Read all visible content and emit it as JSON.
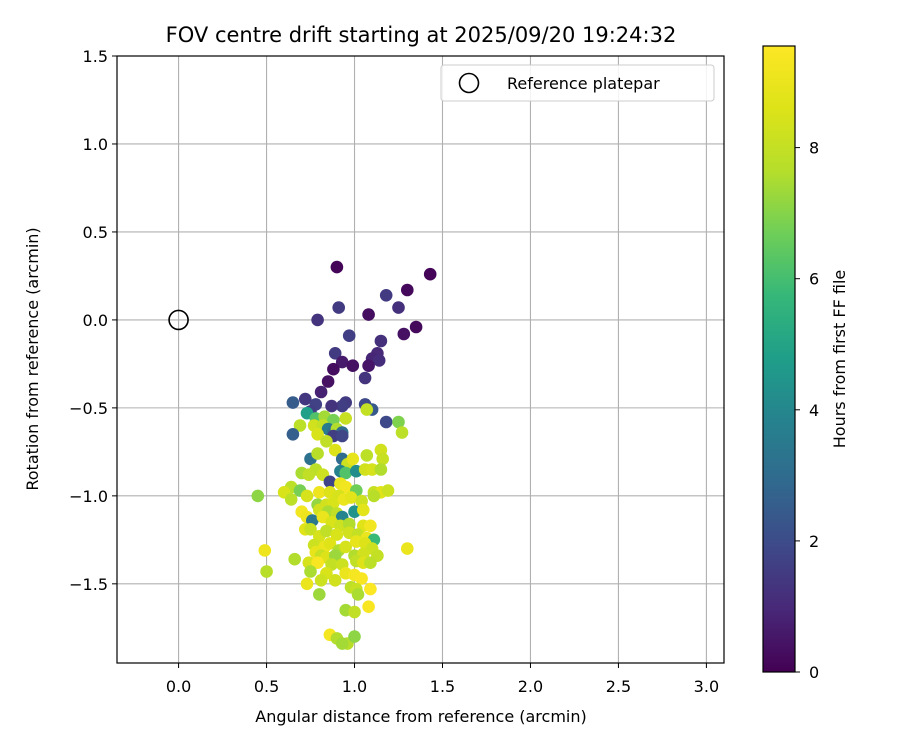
{
  "chart_data": {
    "type": "scatter",
    "title": "FOV centre drift starting at 2025/09/20 19:24:32",
    "xlabel": "Angular distance from reference (arcmin)",
    "ylabel": "Rotation from reference (arcmin)",
    "xlim": [
      -0.35,
      3.1
    ],
    "ylim": [
      -1.95,
      1.5
    ],
    "xticks": [
      0.0,
      0.5,
      1.0,
      1.5,
      2.0,
      2.5,
      3.0
    ],
    "xtick_labels": [
      "0.0",
      "0.5",
      "1.0",
      "1.5",
      "2.0",
      "2.5",
      "3.0"
    ],
    "yticks": [
      1.5,
      1.0,
      0.5,
      0.0,
      -0.5,
      -1.0,
      -1.5
    ],
    "ytick_labels": [
      "1.5",
      "1.0",
      "0.5",
      "0.0",
      "−0.5",
      "−1.0",
      "−1.5"
    ],
    "grid": true,
    "legend": {
      "position": "upper-right",
      "label": "Reference platepar"
    },
    "reference_point": {
      "x": 0.0,
      "y": 0.0
    },
    "colorbar": {
      "label": "Hours from first FF file",
      "colormap": "viridis",
      "range": [
        0,
        9.55
      ],
      "ticks": [
        0,
        2,
        4,
        6,
        8
      ],
      "tick_labels": [
        "0",
        "2",
        "4",
        "6",
        "8"
      ]
    },
    "points": [
      [
        0.9,
        0.3,
        0.1
      ],
      [
        1.43,
        0.26,
        0.1
      ],
      [
        1.3,
        0.17,
        0.2
      ],
      [
        0.91,
        0.07,
        1.5
      ],
      [
        1.18,
        0.14,
        1.5
      ],
      [
        1.25,
        0.07,
        1.2
      ],
      [
        1.08,
        0.03,
        0.3
      ],
      [
        0.79,
        0.0,
        1.3
      ],
      [
        1.35,
        -0.04,
        0.2
      ],
      [
        1.28,
        -0.08,
        0.4
      ],
      [
        0.97,
        -0.09,
        1.6
      ],
      [
        1.15,
        -0.12,
        1.2
      ],
      [
        0.89,
        -0.19,
        1.5
      ],
      [
        1.13,
        -0.19,
        1.0
      ],
      [
        0.93,
        -0.24,
        0.6
      ],
      [
        0.99,
        -0.26,
        0.4
      ],
      [
        1.1,
        -0.22,
        0.9
      ],
      [
        1.14,
        -0.23,
        1.1
      ],
      [
        1.08,
        -0.26,
        0.5
      ],
      [
        0.88,
        -0.28,
        0.3
      ],
      [
        1.06,
        -0.33,
        1.3
      ],
      [
        0.85,
        -0.35,
        0.4
      ],
      [
        0.81,
        -0.41,
        0.8
      ],
      [
        0.72,
        -0.45,
        1.4
      ],
      [
        0.65,
        -0.47,
        2.5
      ],
      [
        0.78,
        -0.48,
        1.7
      ],
      [
        0.95,
        -0.47,
        1.5
      ],
      [
        0.93,
        -0.49,
        1.6
      ],
      [
        1.06,
        -0.48,
        1.9
      ],
      [
        1.1,
        -0.51,
        2.4
      ],
      [
        0.87,
        -0.49,
        1.3
      ],
      [
        0.75,
        -0.52,
        1.6
      ],
      [
        0.73,
        -0.53,
        4.8
      ],
      [
        0.78,
        -0.56,
        6.2
      ],
      [
        0.83,
        -0.55,
        7.4
      ],
      [
        0.88,
        -0.57,
        6.8
      ],
      [
        0.95,
        -0.56,
        8.1
      ],
      [
        1.07,
        -0.51,
        8.0
      ],
      [
        1.18,
        -0.58,
        1.9
      ],
      [
        1.25,
        -0.58,
        6.9
      ],
      [
        0.69,
        -0.6,
        7.8
      ],
      [
        0.77,
        -0.6,
        8.3
      ],
      [
        0.82,
        -0.6,
        8.0
      ],
      [
        0.85,
        -0.62,
        3.6
      ],
      [
        0.88,
        -0.63,
        3.2
      ],
      [
        0.9,
        -0.62,
        7.6
      ],
      [
        0.93,
        -0.64,
        3.0
      ],
      [
        0.65,
        -0.65,
        2.6
      ],
      [
        0.79,
        -0.65,
        8.5
      ],
      [
        0.88,
        -0.66,
        1.6
      ],
      [
        0.93,
        -0.66,
        1.8
      ],
      [
        1.27,
        -0.64,
        7.8
      ],
      [
        0.84,
        -0.69,
        7.9
      ],
      [
        0.89,
        -0.74,
        8.6
      ],
      [
        0.75,
        -0.79,
        3.2
      ],
      [
        0.79,
        -0.76,
        7.7
      ],
      [
        0.93,
        -0.79,
        3.0
      ],
      [
        0.96,
        -0.82,
        8.2
      ],
      [
        0.99,
        -0.79,
        8.9
      ],
      [
        1.07,
        -0.77,
        7.8
      ],
      [
        1.15,
        -0.74,
        8.3
      ],
      [
        1.16,
        -0.79,
        8.1
      ],
      [
        0.78,
        -0.85,
        7.8
      ],
      [
        0.92,
        -0.86,
        3.8
      ],
      [
        0.95,
        -0.87,
        6.2
      ],
      [
        1.01,
        -0.86,
        4.2
      ],
      [
        1.06,
        -0.85,
        8.3
      ],
      [
        1.1,
        -0.85,
        8.4
      ],
      [
        1.15,
        -0.85,
        7.6
      ],
      [
        0.7,
        -0.87,
        7.5
      ],
      [
        0.74,
        -0.88,
        7.9
      ],
      [
        0.82,
        -0.88,
        8.2
      ],
      [
        0.86,
        -0.92,
        1.8
      ],
      [
        0.92,
        -0.93,
        9.0
      ],
      [
        0.95,
        -0.95,
        9.2
      ],
      [
        0.64,
        -0.95,
        7.8
      ],
      [
        0.6,
        -0.98,
        8.5
      ],
      [
        0.69,
        -0.97,
        6.8
      ],
      [
        0.8,
        -0.98,
        9.1
      ],
      [
        0.86,
        -0.98,
        8.6
      ],
      [
        0.91,
        -1.0,
        8.4
      ],
      [
        1.01,
        -0.97,
        6.7
      ],
      [
        1.11,
        -0.98,
        8.1
      ],
      [
        1.15,
        -0.98,
        8.7
      ],
      [
        1.19,
        -0.97,
        8.2
      ],
      [
        0.45,
        -1.0,
        7.1
      ],
      [
        0.64,
        -1.02,
        7.8
      ],
      [
        0.73,
        -1.0,
        8.4
      ],
      [
        0.79,
        -1.05,
        7.2
      ],
      [
        0.84,
        -1.05,
        8.3
      ],
      [
        0.88,
        -1.04,
        8.5
      ],
      [
        0.94,
        -1.02,
        9.0
      ],
      [
        0.98,
        -1.01,
        8.8
      ],
      [
        1.04,
        -1.03,
        8.2
      ],
      [
        1.11,
        -1.0,
        7.7
      ],
      [
        0.7,
        -1.09,
        9.2
      ],
      [
        0.73,
        -1.12,
        9.1
      ],
      [
        0.8,
        -1.08,
        8.3
      ],
      [
        0.85,
        -1.09,
        7.5
      ],
      [
        0.9,
        -1.1,
        7.9
      ],
      [
        0.93,
        -1.12,
        3.9
      ],
      [
        1.0,
        -1.09,
        4.4
      ],
      [
        1.05,
        -1.08,
        8.8
      ],
      [
        0.76,
        -1.14,
        3.4
      ],
      [
        0.82,
        -1.12,
        9.0
      ],
      [
        0.87,
        -1.15,
        8.5
      ],
      [
        0.92,
        -1.17,
        8.2
      ],
      [
        0.97,
        -1.16,
        7.6
      ],
      [
        1.05,
        -1.17,
        8.7
      ],
      [
        1.09,
        -1.17,
        9.2
      ],
      [
        0.72,
        -1.19,
        8.7
      ],
      [
        0.75,
        -1.19,
        8.1
      ],
      [
        0.8,
        -1.23,
        8.4
      ],
      [
        0.84,
        -1.2,
        7.9
      ],
      [
        0.9,
        -1.22,
        8.5
      ],
      [
        0.97,
        -1.21,
        8.3
      ],
      [
        1.02,
        -1.22,
        8.0
      ],
      [
        1.07,
        -1.24,
        9.0
      ],
      [
        1.11,
        -1.25,
        5.8
      ],
      [
        0.77,
        -1.28,
        8.2
      ],
      [
        0.83,
        -1.29,
        9.0
      ],
      [
        0.86,
        -1.27,
        8.7
      ],
      [
        0.91,
        -1.31,
        7.6
      ],
      [
        0.95,
        -1.29,
        8.4
      ],
      [
        1.01,
        -1.26,
        8.9
      ],
      [
        1.06,
        -1.27,
        8.6
      ],
      [
        1.1,
        -1.3,
        8.2
      ],
      [
        0.49,
        -1.31,
        9.1
      ],
      [
        0.78,
        -1.32,
        8.9
      ],
      [
        0.81,
        -1.34,
        8.1
      ],
      [
        0.84,
        -1.35,
        8.6
      ],
      [
        0.89,
        -1.34,
        7.3
      ],
      [
        1.0,
        -1.34,
        7.6
      ],
      [
        1.05,
        -1.33,
        8.3
      ],
      [
        1.13,
        -1.34,
        8.0
      ],
      [
        1.3,
        -1.3,
        9.0
      ],
      [
        0.66,
        -1.36,
        7.6
      ],
      [
        0.74,
        -1.38,
        8.4
      ],
      [
        0.79,
        -1.38,
        9.4
      ],
      [
        0.87,
        -1.39,
        8.0
      ],
      [
        0.93,
        -1.39,
        8.2
      ],
      [
        1.01,
        -1.37,
        7.9
      ],
      [
        1.05,
        -1.38,
        8.6
      ],
      [
        1.09,
        -1.38,
        7.8
      ],
      [
        0.5,
        -1.43,
        7.7
      ],
      [
        0.75,
        -1.43,
        7.5
      ],
      [
        0.84,
        -1.44,
        8.5
      ],
      [
        0.95,
        -1.44,
        9.0
      ],
      [
        1.0,
        -1.45,
        9.3
      ],
      [
        1.04,
        -1.47,
        9.4
      ],
      [
        0.73,
        -1.5,
        9.0
      ],
      [
        0.81,
        -1.48,
        8.2
      ],
      [
        0.89,
        -1.48,
        8.3
      ],
      [
        0.98,
        -1.52,
        7.8
      ],
      [
        1.01,
        -1.53,
        8.1
      ],
      [
        1.09,
        -1.53,
        9.5
      ],
      [
        0.8,
        -1.56,
        7.3
      ],
      [
        1.02,
        -1.56,
        7.5
      ],
      [
        0.95,
        -1.65,
        7.4
      ],
      [
        1.0,
        -1.66,
        7.9
      ],
      [
        1.08,
        -1.63,
        9.4
      ],
      [
        0.86,
        -1.79,
        9.3
      ],
      [
        0.9,
        -1.81,
        7.6
      ],
      [
        0.96,
        -1.84,
        7.7
      ],
      [
        1.0,
        -1.8,
        7.1
      ],
      [
        0.93,
        -1.84,
        7.4
      ]
    ]
  }
}
